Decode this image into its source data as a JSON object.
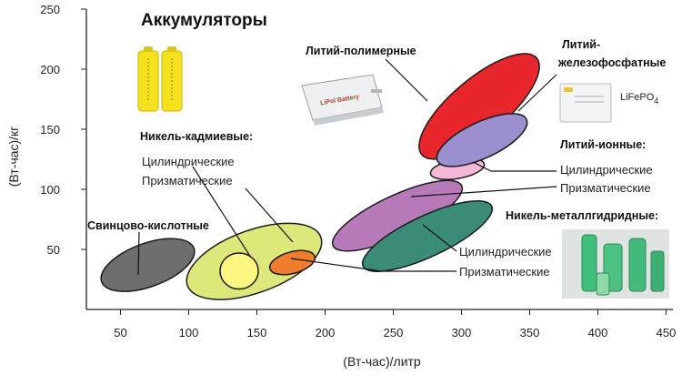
{
  "chart_data": {
    "type": "scatter",
    "title": "Аккумуляторы",
    "xlabel": "(Вт-час)/литр",
    "ylabel": "(Вт-час)/кг",
    "xlim": [
      25,
      455
    ],
    "ylim": [
      0,
      250
    ],
    "x_ticks": [
      "50",
      "100",
      "150",
      "200",
      "250",
      "300",
      "350",
      "400",
      "450"
    ],
    "y_ticks": [
      "50",
      "100",
      "150",
      "200",
      "250"
    ],
    "grid": false,
    "legend": "none",
    "regions": [
      {
        "id": "lead-acid",
        "label": "Свинцово-кислотные",
        "cx": 70,
        "cy": 37,
        "rx": 36,
        "ry": 18,
        "angle": 20,
        "color": "#6e6e6e"
      },
      {
        "id": "nicd-outer",
        "label": "Никель-кадмиевые",
        "cx": 148,
        "cy": 40,
        "rx": 52,
        "ry": 26,
        "angle": 20,
        "color": "#dde87a"
      },
      {
        "id": "nicd-cyl",
        "label": "Цилиндрические",
        "cx": 137,
        "cy": 32,
        "rx": 14,
        "ry": 15,
        "angle": 0,
        "color": "#fbf780"
      },
      {
        "id": "nicd-pri",
        "label": "Призматические",
        "cx": 176,
        "cy": 39,
        "rx": 17,
        "ry": 9,
        "angle": 15,
        "color": "#f07c2e"
      },
      {
        "id": "li-ion-cyl",
        "label": "Цилиндрические",
        "cx": 297,
        "cy": 117,
        "rx": 20,
        "ry": 8,
        "angle": 10,
        "color": "#f5b8d6"
      },
      {
        "id": "li-ion-pri",
        "label": "Призматические",
        "cx": 253,
        "cy": 78,
        "rx": 52,
        "ry": 17,
        "angle": 25,
        "color": "#b77ab8"
      },
      {
        "id": "li-poly",
        "label": "Литий-полимерные",
        "cx": 313,
        "cy": 169,
        "rx": 55,
        "ry": 23,
        "angle": 40,
        "color": "#e8262c"
      },
      {
        "id": "lifepo4",
        "label": "Литий-железофосфатные",
        "cx": 315,
        "cy": 141,
        "rx": 36,
        "ry": 15,
        "angle": 25,
        "color": "#9b8fd0"
      },
      {
        "id": "nimh-cyl",
        "label": "Цилиндрические",
        "cx": 275,
        "cy": 61,
        "rx": 52,
        "ry": 17,
        "angle": 25,
        "color": "#3a8c77"
      },
      {
        "id": "nimh-pri",
        "label": "Призматические",
        "cx": 275,
        "cy": 61,
        "rx": 52,
        "ry": 17,
        "angle": 25,
        "color": "#3a8c77"
      }
    ]
  },
  "labels": {
    "lead_acid": "Свинцово-кислотные",
    "nicd": "Никель-кадмиевые:",
    "nicd_cyl": "Цилиндрические",
    "nicd_pri": "Призматические",
    "li_poly": "Литий-полимерные",
    "lifepo4_line1": "Литий-",
    "lifepo4_line2": "железофосфатные",
    "li_ion": "Литий-ионные:",
    "li_ion_cyl": "Цилиндрические",
    "li_ion_pri": "Призматические",
    "nimh": "Никель-металлгидридные:",
    "nimh_cyl": "Цилиндрические",
    "nimh_pri": "Призматические",
    "lifepo4_badge": "LiFePO",
    "lifepo4_badge_sub": "4",
    "lipo_battery": "LiPol Battery"
  },
  "colors": {
    "axis": "#222222",
    "leader": "#111111"
  }
}
